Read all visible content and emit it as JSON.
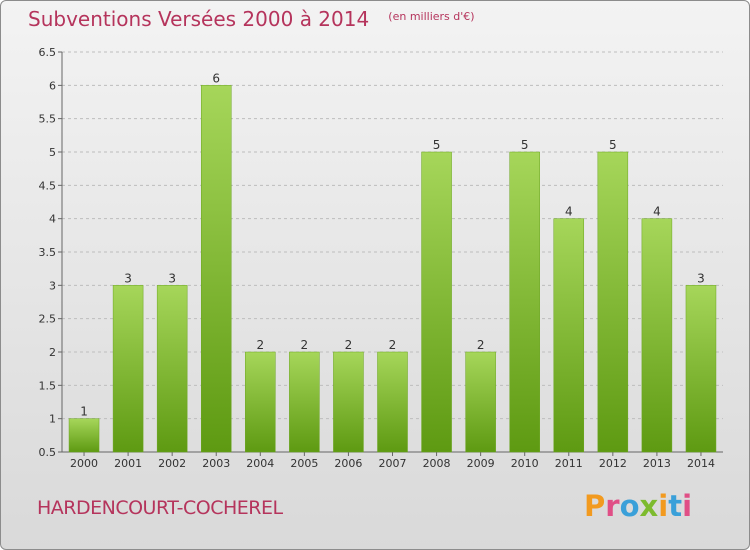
{
  "header": {
    "title": "Subventions Versées 2000 à 2014",
    "unit": "(en milliers d'€)"
  },
  "footer": {
    "commune": "HARDENCOURT-COCHEREL",
    "logo_text": "Proxiti"
  },
  "colors": {
    "title": "#b5345c",
    "bar_light": "#a6d65a",
    "bar_dark": "#5e9a12",
    "logo_letters": [
      "#f29a1f",
      "#e04f86",
      "#3aa0d9",
      "#7dbb2e",
      "#f29a1f",
      "#3aa0d9",
      "#e04f86"
    ]
  },
  "chart_data": {
    "type": "bar",
    "title": "Subventions Versées 2000 à 2014",
    "subtitle": "(en milliers d'€)",
    "categories": [
      "2000",
      "2001",
      "2002",
      "2003",
      "2004",
      "2005",
      "2006",
      "2007",
      "2008",
      "2009",
      "2010",
      "2011",
      "2012",
      "2013",
      "2014"
    ],
    "values": [
      1,
      3,
      3,
      6,
      2,
      2,
      2,
      2,
      5,
      2,
      5,
      4,
      5,
      4,
      3
    ],
    "data_labels": [
      "1",
      "3",
      "3",
      "6",
      "2",
      "2",
      "2",
      "2",
      "5",
      "2",
      "5",
      "4",
      "5",
      "4",
      "3"
    ],
    "ylim": [
      0.5,
      6.5
    ],
    "yticks": [
      "0.5",
      "1",
      "1.5",
      "2",
      "2.5",
      "3",
      "3.5",
      "4",
      "4.5",
      "5",
      "5.5",
      "6",
      "6.5"
    ],
    "grid": "horizontal dashed",
    "xlabel": "",
    "ylabel": ""
  }
}
